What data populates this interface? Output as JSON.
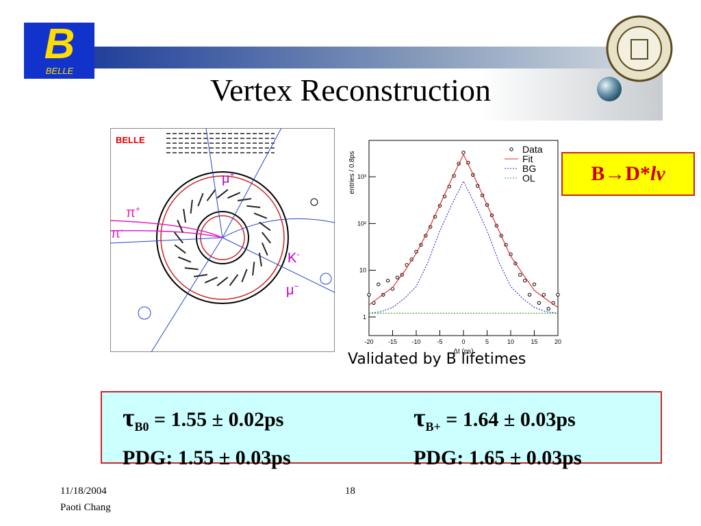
{
  "header": {
    "title": "Vertex Reconstruction",
    "logo_text": "BELLE"
  },
  "event_display": {
    "title": "BELLE",
    "labels": [
      {
        "text": "μ",
        "sup": "+"
      },
      {
        "text": "π",
        "sup": "+"
      },
      {
        "text": "π",
        "sup": "-"
      },
      {
        "text": "K",
        "sup": "-"
      },
      {
        "text": "μ",
        "sup": "−"
      }
    ]
  },
  "plot": {
    "y_label": "entries / 0.8ps",
    "x_label": "Δt (ps)",
    "log_y": true,
    "xlim": [
      -20,
      20
    ],
    "ylim": [
      0.4,
      6000
    ],
    "xticks": [
      -20,
      -15,
      -10,
      -5,
      0,
      5,
      10,
      15,
      20
    ],
    "yticks": [
      1,
      10,
      {
        "value": 100,
        "label": "10²"
      },
      {
        "value": 1000,
        "label": "10³"
      }
    ],
    "legend": "upper right",
    "series": [
      {
        "name": "Data",
        "color": "#000000",
        "style": "points",
        "x": [
          -20,
          -19,
          -18,
          -17,
          -16,
          -15,
          -14,
          -13,
          -12,
          -11,
          -10,
          -9,
          -8,
          -7,
          -6,
          -5,
          -4,
          -3,
          -2,
          -1,
          0,
          1,
          2,
          3,
          4,
          5,
          6,
          7,
          8,
          9,
          10,
          11,
          12,
          13,
          14,
          15,
          16,
          17,
          18,
          19,
          20
        ],
        "values": [
          3,
          2,
          5,
          3,
          6,
          4,
          7,
          8,
          13,
          17,
          25,
          35,
          55,
          85,
          140,
          240,
          380,
          620,
          1050,
          1900,
          3300,
          2000,
          1100,
          640,
          400,
          250,
          150,
          90,
          55,
          35,
          22,
          14,
          8,
          6,
          3,
          5,
          2,
          3,
          1.5,
          2,
          3
        ]
      },
      {
        "name": "Fit",
        "color": "#e03030",
        "style": "solid",
        "x": [
          -20,
          -17.5,
          -15,
          -12.5,
          -10,
          -7.5,
          -5,
          -2.5,
          0,
          2.5,
          5,
          7.5,
          10,
          12.5,
          15,
          17.5,
          20
        ],
        "values": [
          1.8,
          2.8,
          4.3,
          9.5,
          23,
          70,
          250,
          900,
          3000,
          900,
          250,
          70,
          20,
          8.5,
          3.7,
          2.4,
          1.6
        ]
      },
      {
        "name": "BG",
        "color": "#3333cc",
        "style": "dotted",
        "x": [
          -20,
          -17.5,
          -15,
          -12.5,
          -10,
          -7.5,
          -5,
          -2.5,
          0,
          2.5,
          5,
          7.5,
          10,
          12.5,
          15,
          17.5,
          20
        ],
        "values": [
          1.2,
          1.3,
          1.6,
          2.5,
          4.5,
          15,
          70,
          250,
          800,
          250,
          70,
          15,
          4.5,
          2.5,
          1.6,
          1.3,
          1.2
        ]
      },
      {
        "name": "OL",
        "color": "#33aa33",
        "style": "dotted",
        "x": [
          -20,
          20
        ],
        "values": [
          1.2,
          1.2
        ]
      }
    ]
  },
  "decay_box": {
    "text": "B→D*",
    "italic": "lν"
  },
  "caption": "Validated by B lifetimes",
  "results": [
    {
      "symbol": "τ",
      "sub": "B0",
      "value": "= 1.55 ± 0.02ps",
      "pdg": "PDG: 1.55 ± 0.03ps"
    },
    {
      "symbol": "τ",
      "sub": "B+",
      "value": "= 1.64 ± 0.03ps",
      "pdg": "PDG: 1.65 ± 0.03ps"
    }
  ],
  "footer": {
    "date": "11/18/2004",
    "author": "Paoti Chang",
    "page": "18"
  }
}
